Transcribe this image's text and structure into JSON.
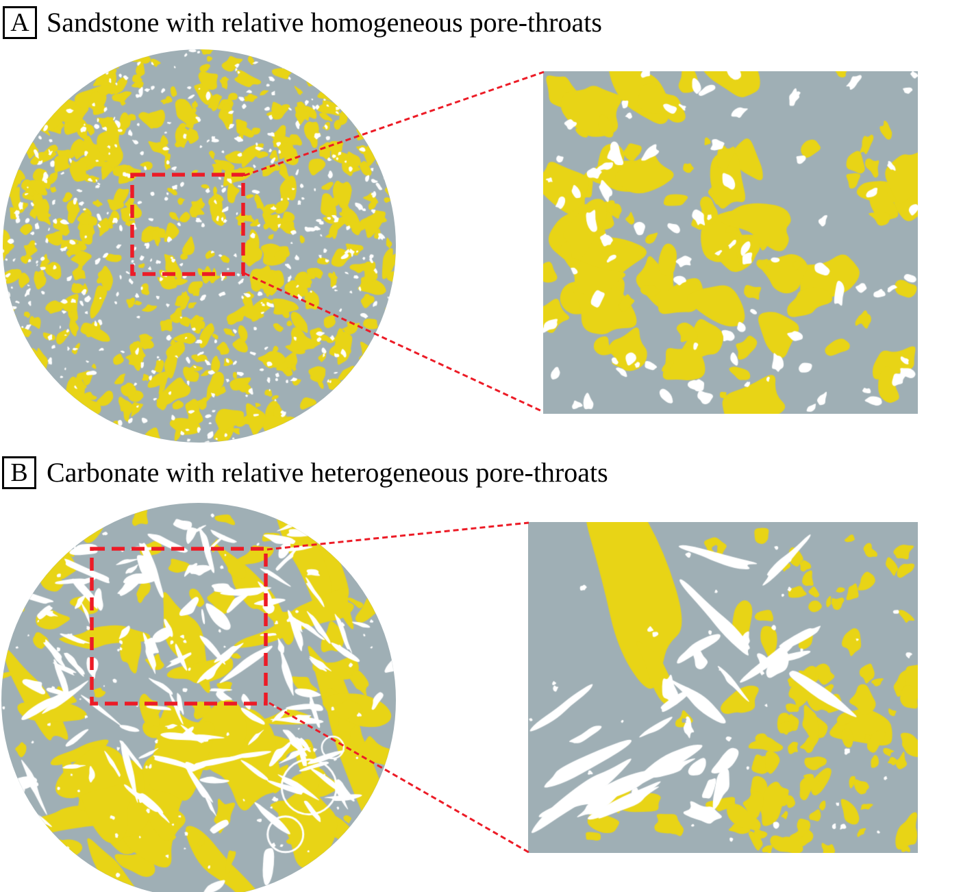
{
  "figure": {
    "panels": [
      {
        "label": "A",
        "caption": "Sandstone with relative homogeneous pore-throats"
      },
      {
        "label": "B",
        "caption": "Carbonate with relative heterogeneous pore-throats"
      }
    ],
    "colors": {
      "matrix_gray": "#9FAFB5",
      "grain_yellow": "#E8D416",
      "pore_white": "#FFFFFF",
      "highlight_red": "#EC1B26",
      "text_black": "#000000",
      "background": "#FFFFFF"
    }
  }
}
